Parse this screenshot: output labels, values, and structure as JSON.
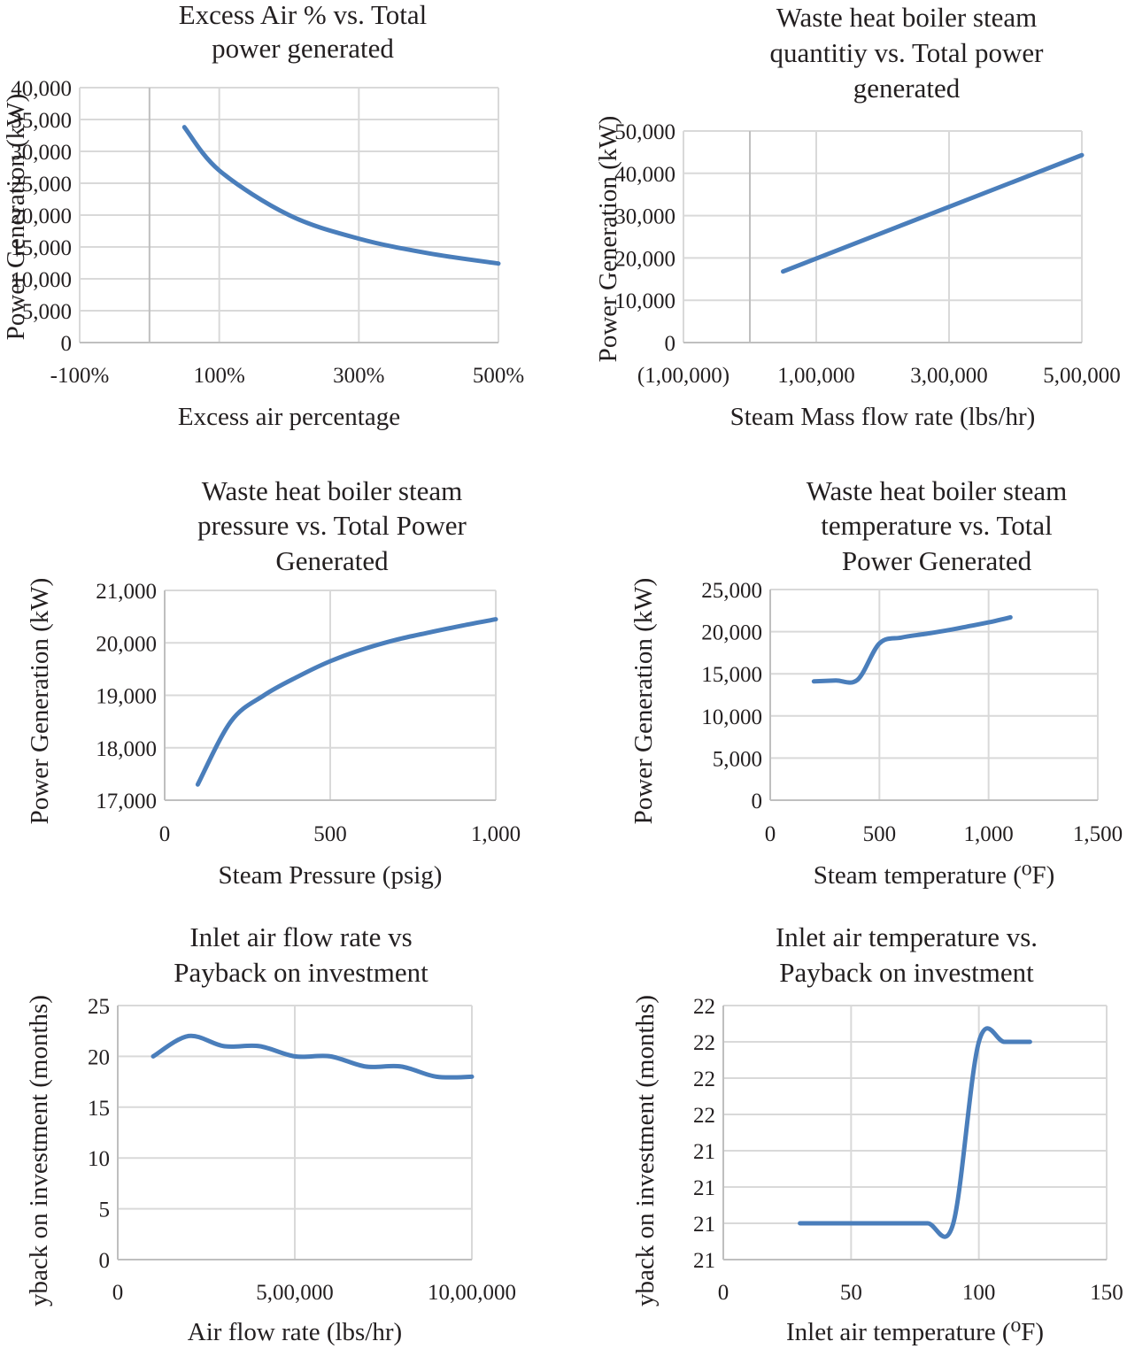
{
  "colors": {
    "series": "#4a7ebb",
    "grid": "#d9d9d9",
    "text": "#231f20"
  },
  "chart_data": [
    {
      "id": "c1",
      "type": "line",
      "title": [
        "Excess Air % vs. Total",
        "power generated"
      ],
      "xlabel": "Excess air percentage",
      "ylabel": "Power Generation (kW)",
      "xlim": [
        -100,
        500
      ],
      "ylim": [
        0,
        40000
      ],
      "xticks": [
        -100,
        100,
        300,
        500
      ],
      "xtick_labels": [
        "-100%",
        "100%",
        "300%",
        "500%"
      ],
      "yticks": [
        0,
        5000,
        10000,
        15000,
        20000,
        25000,
        30000,
        35000,
        40000
      ],
      "ytick_labels": [
        "0",
        "5,000",
        "10,000",
        "15,000",
        "20,000",
        "25,000",
        "30,000",
        "35,000",
        "40,000"
      ],
      "zero_axis_x": 0,
      "series": [
        {
          "name": "Total power generated",
          "x": [
            50,
            100,
            200,
            300,
            400,
            500
          ],
          "y": [
            33800,
            27000,
            20000,
            16300,
            14000,
            12400
          ]
        }
      ]
    },
    {
      "id": "c2",
      "type": "line",
      "title": [
        "Waste heat boiler steam",
        "quantitiy vs. Total power",
        "generated"
      ],
      "xlabel": "Steam Mass flow rate (lbs/hr)",
      "ylabel": "Power Generation (kW)",
      "xlim": [
        -100000,
        500000
      ],
      "ylim": [
        0,
        50000
      ],
      "xticks": [
        -100000,
        100000,
        300000,
        500000
      ],
      "xtick_labels": [
        "(1,00,000)",
        "1,00,000",
        "3,00,000",
        "5,00,000"
      ],
      "yticks": [
        0,
        10000,
        20000,
        30000,
        40000,
        50000
      ],
      "ytick_labels": [
        "0",
        "10,000",
        "20,000",
        "30,000",
        "40,000",
        "50,000"
      ],
      "zero_axis_x": 0,
      "series": [
        {
          "name": "Total power generated",
          "x": [
            50000,
            500000
          ],
          "y": [
            16800,
            44300
          ]
        }
      ]
    },
    {
      "id": "c3",
      "type": "line",
      "title": [
        "Waste heat boiler steam",
        "pressure vs. Total Power",
        "Generated"
      ],
      "xlabel": "Steam Pressure (psig)",
      "ylabel": "Power Generation (kW)",
      "xlim": [
        0,
        1000
      ],
      "ylim": [
        17000,
        21000
      ],
      "xticks": [
        0,
        500,
        1000
      ],
      "xtick_labels": [
        "0",
        "500",
        "1,000"
      ],
      "yticks": [
        17000,
        18000,
        19000,
        20000,
        21000
      ],
      "ytick_labels": [
        "17,000",
        "18,000",
        "19,000",
        "20,000",
        "21,000"
      ],
      "series": [
        {
          "name": "Total power generated",
          "x": [
            100,
            200,
            300,
            400,
            500,
            600,
            700,
            800,
            900,
            1000
          ],
          "y": [
            17300,
            18500,
            19000,
            19350,
            19650,
            19880,
            20060,
            20200,
            20330,
            20450
          ]
        }
      ]
    },
    {
      "id": "c4",
      "type": "line",
      "title": [
        "Waste heat boiler steam",
        "temperature vs. Total",
        "Power Generated"
      ],
      "xlabel": "Steam temperature (⁰F)",
      "ylabel": "Power Generation (kW)",
      "xlim": [
        0,
        1500
      ],
      "ylim": [
        0,
        25000
      ],
      "xticks": [
        0,
        500,
        1000,
        1500
      ],
      "xtick_labels": [
        "0",
        "500",
        "1,000",
        "1,500"
      ],
      "yticks": [
        0,
        5000,
        10000,
        15000,
        20000,
        25000
      ],
      "ytick_labels": [
        "0",
        "5,000",
        "10,000",
        "15,000",
        "20,000",
        "25,000"
      ],
      "series": [
        {
          "name": "Total power generated",
          "x": [
            200,
            300,
            400,
            500,
            600,
            700,
            800,
            900,
            1000,
            1100
          ],
          "y": [
            14100,
            14200,
            14300,
            18600,
            19300,
            19700,
            20100,
            20600,
            21100,
            21700
          ]
        }
      ]
    },
    {
      "id": "c5",
      "type": "line",
      "title": [
        "Inlet air flow rate vs",
        "Payback on investment"
      ],
      "xlabel": "Air flow rate (lbs/hr)",
      "ylabel": "yback on investment (months)",
      "xlim": [
        0,
        1000000
      ],
      "ylim": [
        0,
        25
      ],
      "xticks": [
        0,
        500000,
        1000000
      ],
      "xtick_labels": [
        "0",
        "5,00,000",
        "10,00,000"
      ],
      "yticks": [
        0,
        5,
        10,
        15,
        20,
        25
      ],
      "ytick_labels": [
        "0",
        "5",
        "10",
        "15",
        "20",
        "25"
      ],
      "series": [
        {
          "name": "Payback",
          "x": [
            100000,
            200000,
            300000,
            400000,
            500000,
            600000,
            700000,
            800000,
            900000,
            1000000
          ],
          "y": [
            20,
            22,
            21,
            21,
            20,
            20,
            19,
            19,
            18,
            18
          ]
        }
      ]
    },
    {
      "id": "c6",
      "type": "line",
      "title": [
        "Inlet air temperature vs.",
        "Payback on investment"
      ],
      "xlabel": "Inlet air temperature (⁰F)",
      "ylabel": "yback on investment (months)",
      "xlim": [
        0,
        150
      ],
      "ylim": [
        0,
        7
      ],
      "xticks": [
        0,
        50,
        100,
        150
      ],
      "xtick_labels": [
        "0",
        "50",
        "100",
        "150"
      ],
      "yticks": [
        0,
        1,
        2,
        3,
        4,
        5,
        6,
        7
      ],
      "ytick_labels": [
        "21",
        "21",
        "21",
        "21",
        "22",
        "22",
        "22",
        "22"
      ],
      "series": [
        {
          "name": "Payback",
          "x": [
            30,
            40,
            50,
            60,
            70,
            80,
            90,
            100,
            110,
            120
          ],
          "y": [
            1,
            1,
            1,
            1,
            1,
            1,
            1,
            6,
            6,
            6
          ]
        }
      ]
    }
  ]
}
